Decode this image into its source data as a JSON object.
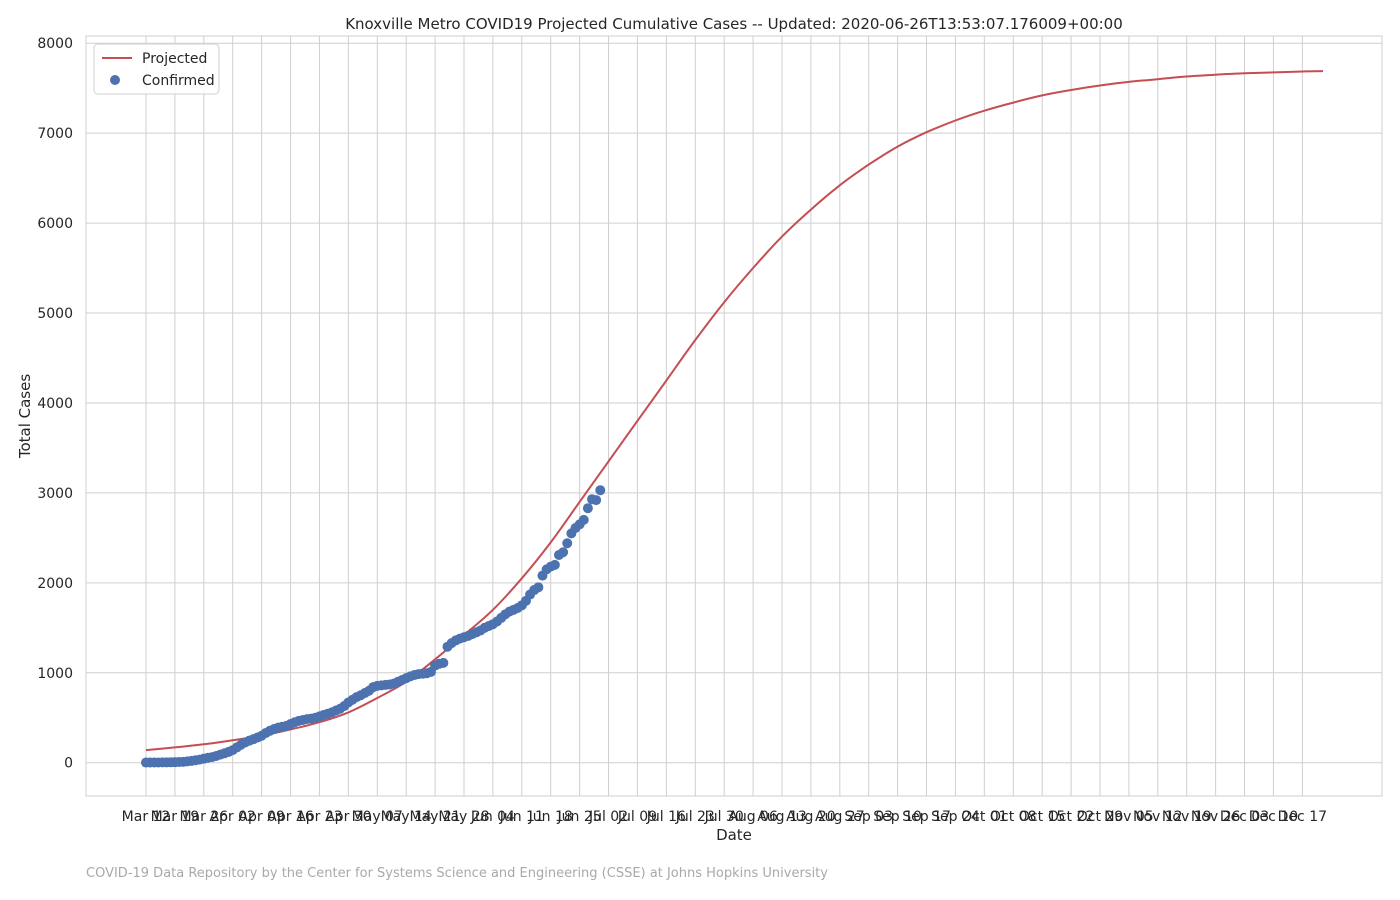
{
  "chart_data": {
    "type": "line",
    "title": "Knoxville Metro COVID19 Projected Cumulative Cases -- Updated: 2020-06-26T13:53:07.176009+00:00",
    "xlabel": "Date",
    "ylabel": "Total Cases",
    "x_axis": {
      "start": "2020-03-12",
      "end": "2020-12-22"
    },
    "ylim": [
      -370,
      8080
    ],
    "y_ticks": [
      0,
      1000,
      2000,
      3000,
      4000,
      5000,
      6000,
      7000,
      8000
    ],
    "x_ticks": [
      "Mar 12",
      "Mar 19",
      "Mar 26",
      "Apr 02",
      "Apr 09",
      "Apr 16",
      "Apr 23",
      "Apr 30",
      "May 07",
      "May 14",
      "May 21",
      "May 28",
      "Jun 04",
      "Jun 11",
      "Jun 18",
      "Jun 25",
      "Jul 02",
      "Jul 09",
      "Jul 16",
      "Jul 23",
      "Jul 30",
      "Aug 06",
      "Aug 13",
      "Aug 20",
      "Aug 27",
      "Sep 03",
      "Sep 10",
      "Sep 17",
      "Sep 24",
      "Oct 01",
      "Oct 08",
      "Oct 15",
      "Oct 22",
      "Oct 29",
      "Nov 05",
      "Nov 12",
      "Nov 19",
      "Nov 26",
      "Dec 03",
      "Dec 10",
      "Dec 17"
    ],
    "grid": true,
    "legend_position": "top-left",
    "series": [
      {
        "name": "Projected",
        "kind": "line",
        "color": "#c44e52",
        "points": [
          [
            "2020-03-12",
            140
          ],
          [
            "2020-03-19",
            170
          ],
          [
            "2020-03-26",
            205
          ],
          [
            "2020-04-02",
            250
          ],
          [
            "2020-04-09",
            300
          ],
          [
            "2020-04-16",
            370
          ],
          [
            "2020-04-23",
            450
          ],
          [
            "2020-04-30",
            560
          ],
          [
            "2020-05-07",
            720
          ],
          [
            "2020-05-14",
            900
          ],
          [
            "2020-05-21",
            1150
          ],
          [
            "2020-05-28",
            1420
          ],
          [
            "2020-06-04",
            1700
          ],
          [
            "2020-06-11",
            2050
          ],
          [
            "2020-06-18",
            2450
          ],
          [
            "2020-06-25",
            2900
          ],
          [
            "2020-07-02",
            3350
          ],
          [
            "2020-07-09",
            3800
          ],
          [
            "2020-07-16",
            4250
          ],
          [
            "2020-07-23",
            4700
          ],
          [
            "2020-07-30",
            5120
          ],
          [
            "2020-08-06",
            5500
          ],
          [
            "2020-08-13",
            5850
          ],
          [
            "2020-08-20",
            6150
          ],
          [
            "2020-08-27",
            6420
          ],
          [
            "2020-09-03",
            6650
          ],
          [
            "2020-09-10",
            6850
          ],
          [
            "2020-09-17",
            7010
          ],
          [
            "2020-09-24",
            7140
          ],
          [
            "2020-10-01",
            7250
          ],
          [
            "2020-10-08",
            7340
          ],
          [
            "2020-10-15",
            7420
          ],
          [
            "2020-10-22",
            7480
          ],
          [
            "2020-10-29",
            7530
          ],
          [
            "2020-11-05",
            7570
          ],
          [
            "2020-11-12",
            7600
          ],
          [
            "2020-11-19",
            7630
          ],
          [
            "2020-11-26",
            7650
          ],
          [
            "2020-12-03",
            7665
          ],
          [
            "2020-12-10",
            7675
          ],
          [
            "2020-12-17",
            7685
          ],
          [
            "2020-12-22",
            7690
          ]
        ]
      },
      {
        "name": "Confirmed",
        "kind": "scatter",
        "color": "#4c72b0",
        "points": [
          [
            "2020-03-12",
            2
          ],
          [
            "2020-03-13",
            2
          ],
          [
            "2020-03-14",
            3
          ],
          [
            "2020-03-15",
            3
          ],
          [
            "2020-03-16",
            4
          ],
          [
            "2020-03-17",
            4
          ],
          [
            "2020-03-18",
            5
          ],
          [
            "2020-03-19",
            6
          ],
          [
            "2020-03-20",
            8
          ],
          [
            "2020-03-21",
            10
          ],
          [
            "2020-03-22",
            15
          ],
          [
            "2020-03-23",
            20
          ],
          [
            "2020-03-24",
            28
          ],
          [
            "2020-03-25",
            35
          ],
          [
            "2020-03-26",
            45
          ],
          [
            "2020-03-27",
            55
          ],
          [
            "2020-03-28",
            62
          ],
          [
            "2020-03-29",
            75
          ],
          [
            "2020-03-30",
            90
          ],
          [
            "2020-03-31",
            105
          ],
          [
            "2020-04-01",
            120
          ],
          [
            "2020-04-02",
            140
          ],
          [
            "2020-04-03",
            170
          ],
          [
            "2020-04-04",
            200
          ],
          [
            "2020-04-05",
            225
          ],
          [
            "2020-04-06",
            245
          ],
          [
            "2020-04-07",
            262
          ],
          [
            "2020-04-08",
            280
          ],
          [
            "2020-04-09",
            300
          ],
          [
            "2020-04-10",
            330
          ],
          [
            "2020-04-11",
            355
          ],
          [
            "2020-04-12",
            375
          ],
          [
            "2020-04-13",
            390
          ],
          [
            "2020-04-14",
            400
          ],
          [
            "2020-04-15",
            410
          ],
          [
            "2020-04-16",
            430
          ],
          [
            "2020-04-17",
            450
          ],
          [
            "2020-04-18",
            465
          ],
          [
            "2020-04-19",
            475
          ],
          [
            "2020-04-20",
            485
          ],
          [
            "2020-04-21",
            490
          ],
          [
            "2020-04-22",
            500
          ],
          [
            "2020-04-23",
            515
          ],
          [
            "2020-04-24",
            530
          ],
          [
            "2020-04-25",
            545
          ],
          [
            "2020-04-26",
            560
          ],
          [
            "2020-04-27",
            580
          ],
          [
            "2020-04-28",
            600
          ],
          [
            "2020-04-29",
            630
          ],
          [
            "2020-04-30",
            670
          ],
          [
            "2020-05-01",
            700
          ],
          [
            "2020-05-02",
            730
          ],
          [
            "2020-05-03",
            750
          ],
          [
            "2020-05-04",
            775
          ],
          [
            "2020-05-05",
            800
          ],
          [
            "2020-05-06",
            840
          ],
          [
            "2020-05-07",
            855
          ],
          [
            "2020-05-08",
            860
          ],
          [
            "2020-05-09",
            865
          ],
          [
            "2020-05-10",
            870
          ],
          [
            "2020-05-11",
            880
          ],
          [
            "2020-05-12",
            900
          ],
          [
            "2020-05-13",
            920
          ],
          [
            "2020-05-14",
            940
          ],
          [
            "2020-05-15",
            960
          ],
          [
            "2020-05-16",
            975
          ],
          [
            "2020-05-17",
            985
          ],
          [
            "2020-05-18",
            990
          ],
          [
            "2020-05-19",
            995
          ],
          [
            "2020-05-20",
            1010
          ],
          [
            "2020-05-21",
            1080
          ],
          [
            "2020-05-22",
            1100
          ],
          [
            "2020-05-23",
            1110
          ],
          [
            "2020-05-24",
            1290
          ],
          [
            "2020-05-25",
            1330
          ],
          [
            "2020-05-26",
            1360
          ],
          [
            "2020-05-27",
            1380
          ],
          [
            "2020-05-28",
            1395
          ],
          [
            "2020-05-29",
            1410
          ],
          [
            "2020-05-30",
            1430
          ],
          [
            "2020-05-31",
            1450
          ],
          [
            "2020-06-01",
            1470
          ],
          [
            "2020-06-02",
            1500
          ],
          [
            "2020-06-03",
            1520
          ],
          [
            "2020-06-04",
            1540
          ],
          [
            "2020-06-05",
            1570
          ],
          [
            "2020-06-06",
            1610
          ],
          [
            "2020-06-07",
            1650
          ],
          [
            "2020-06-08",
            1680
          ],
          [
            "2020-06-09",
            1700
          ],
          [
            "2020-06-10",
            1720
          ],
          [
            "2020-06-11",
            1750
          ],
          [
            "2020-06-12",
            1800
          ],
          [
            "2020-06-13",
            1870
          ],
          [
            "2020-06-14",
            1920
          ],
          [
            "2020-06-15",
            1950
          ],
          [
            "2020-06-16",
            2080
          ],
          [
            "2020-06-17",
            2150
          ],
          [
            "2020-06-18",
            2180
          ],
          [
            "2020-06-19",
            2200
          ],
          [
            "2020-06-20",
            2310
          ],
          [
            "2020-06-21",
            2340
          ],
          [
            "2020-06-22",
            2440
          ],
          [
            "2020-06-23",
            2550
          ],
          [
            "2020-06-24",
            2610
          ],
          [
            "2020-06-25",
            2650
          ],
          [
            "2020-06-26",
            2700
          ],
          [
            "2020-06-27",
            2830
          ],
          [
            "2020-06-28",
            2930
          ],
          [
            "2020-06-29",
            2920
          ],
          [
            "2020-06-30",
            3030
          ]
        ]
      }
    ]
  },
  "footer": {
    "source": "COVID-19 Data Repository by the Center for Systems Science and Engineering (CSSE) at Johns Hopkins University"
  }
}
